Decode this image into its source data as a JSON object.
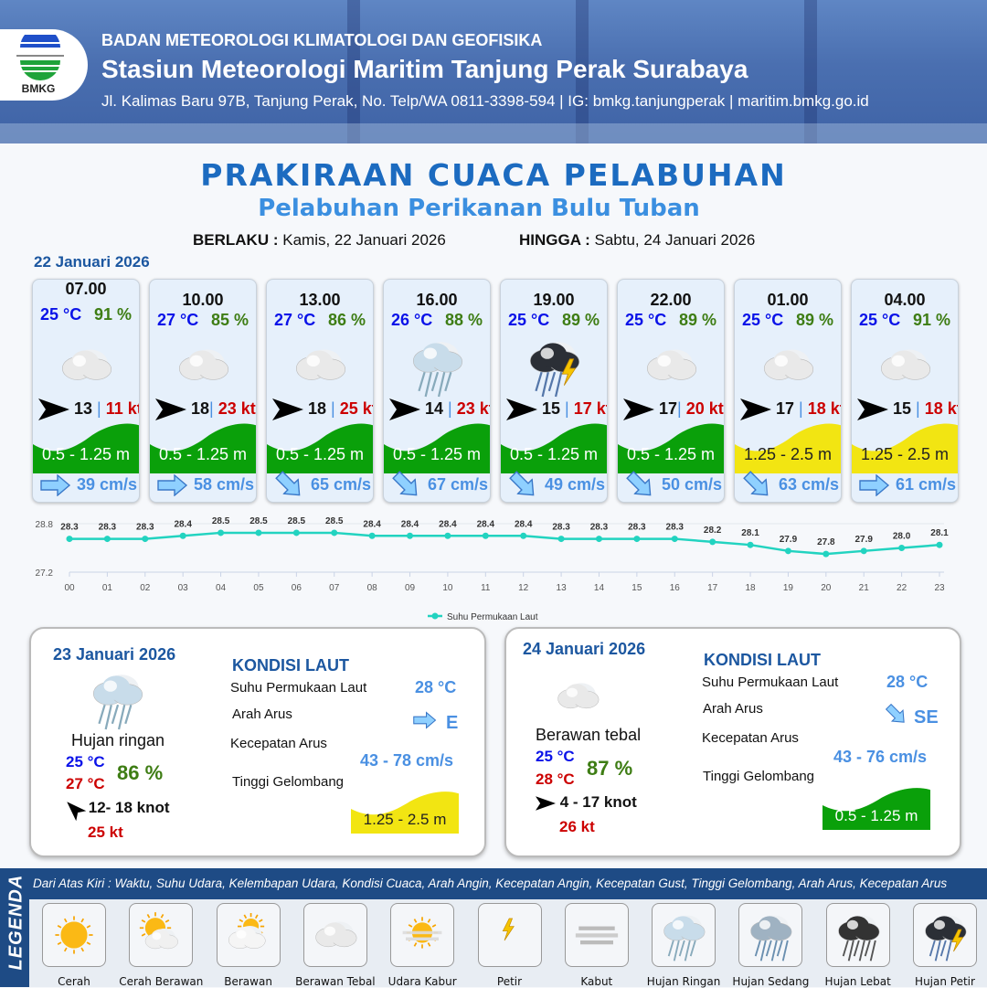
{
  "header": {
    "logo_text": "BMKG",
    "agency": "BADAN METEOROLOGI KLIMATOLOGI DAN GEOFISIKA",
    "station": "Stasiun Meteorologi Maritim Tanjung Perak Surabaya",
    "address": "Jl. Kalimas Baru 97B, Tanjung Perak, No. Telp/WA 0811-3398-594 | IG: bmkg.tanjungperak | maritim.bmkg.go.id"
  },
  "title": "PRAKIRAAN CUACA PELABUHAN",
  "subtitle": "Pelabuhan Perikanan Bulu Tuban",
  "validity": {
    "from_label": "BERLAKU :",
    "from": "Kamis, 22 Januari 2026",
    "to_label": "HINGGA :",
    "to": "Sabtu, 24 Januari 2026"
  },
  "day1_label": "22 Januari 2026",
  "colors": {
    "green_wave": "#0aa00a",
    "yellow_wave": "#f2e512",
    "temp": "#0a12e8",
    "humidity": "#3e7d14",
    "gust": "#cc0000",
    "current": "#4a90e2",
    "chart_line": "#22d3c0"
  },
  "forecasts": [
    {
      "time": "07.00",
      "temp": "25 °C",
      "rh": "91 %",
      "icon": "berawan-tebal",
      "wind": "13",
      "sep": " | ",
      "gust": "11 kt",
      "wave": "0.5 - 1.25 m",
      "wave_level": "green",
      "cur_dir": "E",
      "current": "39 cm/s"
    },
    {
      "time": "10.00",
      "temp": "27 °C",
      "rh": "85 %",
      "icon": "berawan-tebal",
      "wind": "18",
      "sep": "| ",
      "gust": "23 kt",
      "wave": "0.5 - 1.25 m",
      "wave_level": "green",
      "cur_dir": "E",
      "current": "58 cm/s"
    },
    {
      "time": "13.00",
      "temp": "27 °C",
      "rh": "86 %",
      "icon": "berawan-tebal",
      "wind": "18",
      "sep": " | ",
      "gust": "25 kt",
      "wave": "0.5 - 1.25 m",
      "wave_level": "green",
      "cur_dir": "SE",
      "current": "65 cm/s"
    },
    {
      "time": "16.00",
      "temp": "26 °C",
      "rh": "88 %",
      "icon": "hujan-ringan",
      "wind": "14",
      "sep": " | ",
      "gust": "23 kt",
      "wave": "0.5 - 1.25 m",
      "wave_level": "green",
      "cur_dir": "SE",
      "current": "67 cm/s"
    },
    {
      "time": "19.00",
      "temp": "25 °C",
      "rh": "89 %",
      "icon": "hujan-petir",
      "wind": "15",
      "sep": " | ",
      "gust": "17 kt",
      "wave": "0.5 - 1.25 m",
      "wave_level": "green",
      "cur_dir": "SE",
      "current": "49 cm/s"
    },
    {
      "time": "22.00",
      "temp": "25 °C",
      "rh": "89 %",
      "icon": "berawan-tebal",
      "wind": "17",
      "sep": "| ",
      "gust": "20 kt",
      "wave": "0.5 - 1.25 m",
      "wave_level": "green",
      "cur_dir": "SE",
      "current": "50 cm/s"
    },
    {
      "time": "01.00",
      "temp": "25 °C",
      "rh": "89 %",
      "icon": "berawan-tebal",
      "wind": "17",
      "sep": " | ",
      "gust": "18 kt",
      "wave": "1.25 - 2.5 m",
      "wave_level": "yellow",
      "cur_dir": "SE",
      "current": "63 cm/s"
    },
    {
      "time": "04.00",
      "temp": "25 °C",
      "rh": "91 %",
      "icon": "berawan-tebal",
      "wind": "15",
      "sep": " | ",
      "gust": "18 kt",
      "wave": "1.25 - 2.5 m",
      "wave_level": "yellow",
      "cur_dir": "E",
      "current": "61 cm/s"
    }
  ],
  "chart_data": {
    "type": "line",
    "title": "",
    "x": [
      "00",
      "01",
      "02",
      "03",
      "04",
      "05",
      "06",
      "07",
      "08",
      "09",
      "10",
      "11",
      "12",
      "13",
      "14",
      "15",
      "16",
      "17",
      "18",
      "19",
      "20",
      "21",
      "22",
      "23"
    ],
    "series": [
      {
        "name": "Suhu Permukaan Laut",
        "values": [
          28.3,
          28.3,
          28.3,
          28.4,
          28.5,
          28.5,
          28.5,
          28.5,
          28.4,
          28.4,
          28.4,
          28.4,
          28.4,
          28.3,
          28.3,
          28.3,
          28.3,
          28.2,
          28.1,
          27.9,
          27.8,
          27.9,
          28.0,
          28.1
        ]
      }
    ],
    "ylim": [
      27.2,
      28.8
    ],
    "yticks": [
      "28.8",
      "27.2"
    ],
    "data_labels": [
      "28.3",
      "28.3",
      "28.3",
      "28.4",
      "28.5",
      "28.5",
      "28.5",
      "28.5",
      "28.4",
      "28.4",
      "28.4",
      "28.4",
      "28.4",
      "28.3",
      "28.3",
      "28.3",
      "28.3",
      "28.2",
      "28.1",
      "27.9",
      "27.8",
      "27.9",
      "28.0",
      "28.1"
    ],
    "legend": "bottom-center"
  },
  "days": [
    {
      "date": "23 Januari 2026",
      "icon": "hujan-ringan",
      "condition": "Hujan ringan",
      "tmin": "25 °C",
      "tmax": "27 °C",
      "rh": "86 %",
      "wind": "12- 18 knot",
      "gust": "25 kt",
      "wind_dir": "NE",
      "sea_title": "KONDISI LAUT",
      "sst_label": "Suhu Permukaan Laut",
      "sst": "28 °C",
      "dir_label": "Arah Arus",
      "dir": "E",
      "speed_label": "Kecepatan Arus",
      "speed": "43  - 78 cm/s",
      "wave_label": "Tinggi Gelombang",
      "wave": "1.25 - 2.5 m",
      "wave_level": "yellow"
    },
    {
      "date": "24 Januari 2026",
      "icon": "berawan-tebal",
      "condition": "Berawan tebal",
      "tmin": "25 °C",
      "tmax": "28 °C",
      "rh": "87 %",
      "wind": "4 - 17 knot",
      "gust": "26 kt",
      "wind_dir": "E",
      "sea_title": "KONDISI LAUT",
      "sst_label": "Suhu Permukaan Laut",
      "sst": "28 °C",
      "dir_label": "Arah Arus",
      "dir": "SE",
      "speed_label": "Kecepatan Arus",
      "speed": "43 - 76 cm/s",
      "wave_label": "Tinggi Gelombang",
      "wave": "0.5 - 1.25 m",
      "wave_level": "green"
    }
  ],
  "legend": {
    "title": "LEGENDA",
    "description": "Dari Atas Kiri : Waktu, Suhu Udara, Kelembapan Udara, Kondisi Cuaca, Arah Angin, Kecepatan Angin, Kecepatan Gust, Tinggi Gelombang, Arah Arus, Kecepatan Arus",
    "items": [
      {
        "label": "Cerah",
        "icon": "cerah"
      },
      {
        "label": "Cerah Berawan",
        "icon": "cerah-berawan"
      },
      {
        "label": "Berawan",
        "icon": "berawan"
      },
      {
        "label": "Berawan Tebal",
        "icon": "berawan-tebal"
      },
      {
        "label": "Udara Kabur",
        "icon": "udara-kabur"
      },
      {
        "label": "Petir",
        "icon": "petir"
      },
      {
        "label": "Kabut",
        "icon": "kabut"
      },
      {
        "label": "Hujan Ringan",
        "icon": "hujan-ringan"
      },
      {
        "label": "Hujan Sedang",
        "icon": "hujan-sedang"
      },
      {
        "label": "Hujan Lebat",
        "icon": "hujan-lebat"
      },
      {
        "label": "Hujan Petir",
        "icon": "hujan-petir"
      }
    ]
  }
}
